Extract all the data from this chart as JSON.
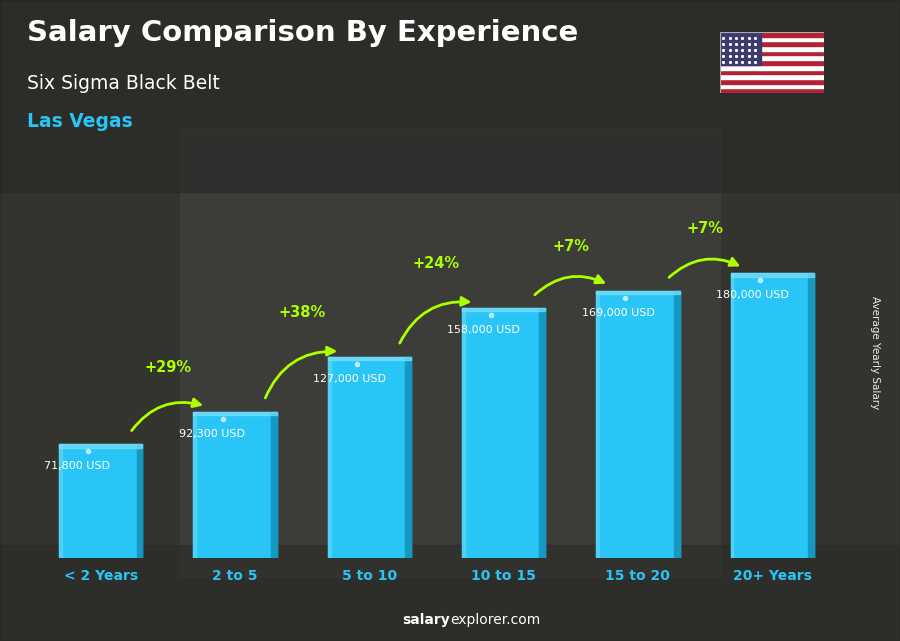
{
  "title": "Salary Comparison By Experience",
  "subtitle1": "Six Sigma Black Belt",
  "subtitle2": "Las Vegas",
  "categories": [
    "< 2 Years",
    "2 to 5",
    "5 to 10",
    "10 to 15",
    "15 to 20",
    "20+ Years"
  ],
  "values": [
    71800,
    92300,
    127000,
    158000,
    169000,
    180000
  ],
  "value_labels": [
    "71,800 USD",
    "92,300 USD",
    "127,000 USD",
    "158,000 USD",
    "169,000 USD",
    "180,000 USD"
  ],
  "pct_changes": [
    "+29%",
    "+38%",
    "+24%",
    "+7%",
    "+7%"
  ],
  "bar_color": "#29c5f6",
  "bar_color_dark": "#1399c2",
  "bar_color_light": "#7adff8",
  "pct_color": "#aaff00",
  "title_color": "#ffffff",
  "subtitle1_color": "#ffffff",
  "subtitle2_color": "#29c5f6",
  "label_color": "#ffffff",
  "xticklabel_color": "#29c5f6",
  "bg_color": "#5a5a5a",
  "footer_bold": "salary",
  "footer_normal": "explorer.com",
  "ylabel": "Average Yearly Salary"
}
